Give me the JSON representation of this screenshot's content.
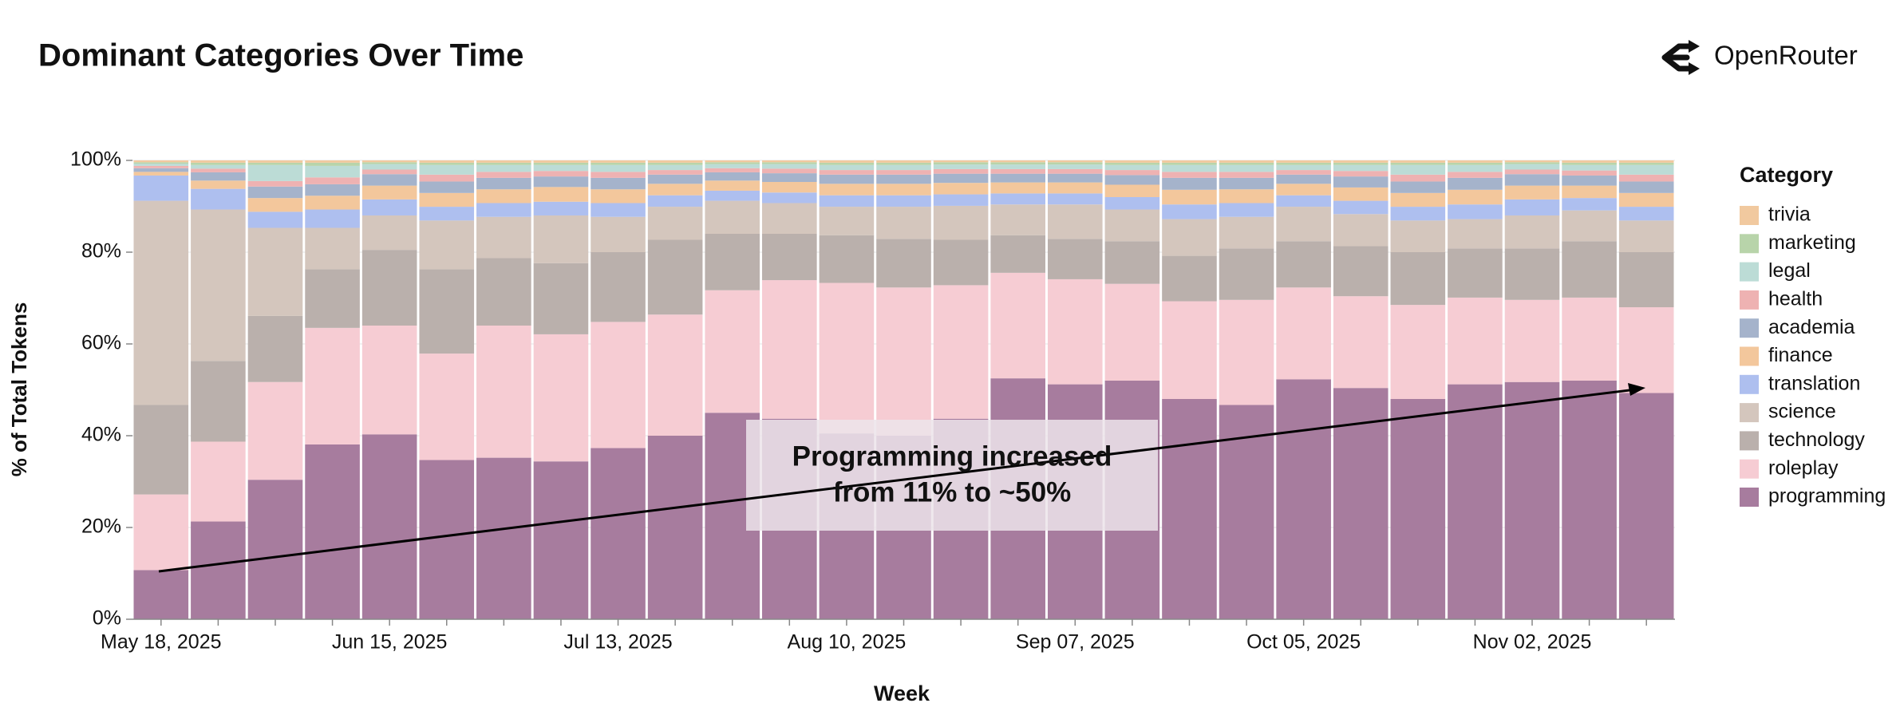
{
  "chart_data": {
    "type": "stacked_bar",
    "title": "Dominant Categories Over Time",
    "brand": "OpenRouter",
    "x_label": "Week",
    "y_label": "% of Total Tokens",
    "legend_title": "Category",
    "annotation": [
      "Programming increased",
      "from 11% to ~50%"
    ],
    "categories": [
      "May 18, 2025",
      null,
      null,
      null,
      "Jun 15, 2025",
      null,
      null,
      null,
      "Jul 13, 2025",
      null,
      null,
      null,
      "Aug 10, 2025",
      null,
      null,
      null,
      "Sep 07, 2025",
      null,
      null,
      null,
      "Oct 05, 2025",
      null,
      null,
      null,
      "Nov 02, 2025",
      null,
      null
    ],
    "ylim": [
      0,
      100
    ],
    "yticks": [
      {
        "value": 0,
        "label": "0%"
      },
      {
        "value": 20,
        "label": "20%"
      },
      {
        "value": 40,
        "label": "40%"
      },
      {
        "value": 60,
        "label": "60%"
      },
      {
        "value": 80,
        "label": "80%"
      },
      {
        "value": 100,
        "label": "100%"
      }
    ],
    "series": [
      {
        "name": "programming",
        "color": "#a77c9e",
        "values": [
          10.7,
          21.3,
          30.4,
          38.1,
          40.3,
          34.7,
          35.2,
          34.4,
          37.3,
          40,
          45,
          43.7,
          40.5,
          40,
          43.7,
          52.5,
          51.2,
          52,
          48,
          46.7,
          52.3,
          50.4,
          48,
          51.2,
          51.7,
          52,
          49.3
        ]
      },
      {
        "name": "roleplay",
        "color": "#f6ccd3",
        "values": [
          16.5,
          17.4,
          21.3,
          25.4,
          23.7,
          23.2,
          28.8,
          27.7,
          27.5,
          26.4,
          26.7,
          30.2,
          32.8,
          32.3,
          29.1,
          23,
          22.9,
          21.1,
          21.3,
          22.9,
          20,
          20,
          20.5,
          18.9,
          17.9,
          18.1,
          18.7
        ]
      },
      {
        "name": "technology",
        "color": "#bab0ac",
        "values": [
          19.5,
          17.6,
          14.4,
          12.8,
          16.5,
          18.4,
          14.7,
          15.5,
          15.2,
          16.3,
          12.3,
          10.1,
          10.4,
          10.6,
          9.9,
          8.2,
          8.8,
          9.3,
          9.9,
          11.2,
          10.1,
          10.9,
          11.5,
          10.7,
          11.2,
          12.3,
          12
        ]
      },
      {
        "name": "science",
        "color": "#d4c6bd",
        "values": [
          44.5,
          33,
          19.2,
          9,
          7.5,
          10.6,
          9,
          10.4,
          7.7,
          7.2,
          7.2,
          6.7,
          6.2,
          7,
          7.4,
          6.7,
          7.5,
          6.9,
          8,
          6.9,
          7.5,
          7,
          6.9,
          6.4,
          7.2,
          6.7,
          6.9
        ]
      },
      {
        "name": "translation",
        "color": "#aebfef",
        "values": [
          5.5,
          4.5,
          3.5,
          4,
          3.5,
          3,
          3,
          3,
          3,
          2.5,
          2.2,
          2.3,
          2.5,
          2.5,
          2.5,
          2.4,
          2.4,
          2.7,
          3.2,
          3,
          2.5,
          2.9,
          3,
          3.2,
          3.5,
          2.7,
          3
        ]
      },
      {
        "name": "finance",
        "color": "#f3c79c",
        "values": [
          0.8,
          1.8,
          3,
          3,
          3,
          3,
          3,
          3.2,
          3,
          2.5,
          2.2,
          2.3,
          2.5,
          2.5,
          2.5,
          2.4,
          2.4,
          2.7,
          3.2,
          3,
          2.5,
          2.9,
          3,
          3.2,
          3,
          2.7,
          3
        ]
      },
      {
        "name": "academia",
        "color": "#a5b3cb",
        "values": [
          0.8,
          1.8,
          2.5,
          2.5,
          2.5,
          2.5,
          2.5,
          2.3,
          2.5,
          2,
          1.8,
          1.9,
          2,
          2,
          2,
          1.9,
          1.9,
          2.1,
          2.6,
          2.5,
          2,
          2.4,
          2.5,
          2.6,
          2.5,
          2.2,
          2.5
        ]
      },
      {
        "name": "health",
        "color": "#eeb2b2",
        "values": [
          0.5,
          0.8,
          1.2,
          1.5,
          1,
          1.5,
          1.3,
          1.2,
          1.3,
          1,
          0.9,
          1,
          1,
          1,
          1,
          1,
          1,
          1.1,
          1.3,
          1.3,
          1,
          1.2,
          1.5,
          1.3,
          1,
          1.1,
          1.5
        ]
      },
      {
        "name": "legal",
        "color": "#bcdcd6",
        "values": [
          0.5,
          0.8,
          3.5,
          2.5,
          1.2,
          2.1,
          1.5,
          1.3,
          1.5,
          1.1,
          0.9,
          1,
          1.1,
          1.1,
          1,
          1,
          1,
          1.1,
          1.5,
          1.5,
          1.1,
          1.3,
          2.1,
          1.5,
          1.2,
          1.2,
          2.1
        ]
      },
      {
        "name": "marketing",
        "color": "#b8d4aa",
        "values": [
          0.3,
          0.5,
          0.5,
          0.7,
          0.4,
          0.5,
          0.5,
          0.5,
          0.5,
          0.5,
          0.4,
          0.4,
          0.5,
          0.5,
          0.5,
          0.5,
          0.5,
          0.5,
          0.5,
          0.5,
          0.5,
          0.5,
          0.5,
          0.5,
          0.4,
          0.5,
          0.5
        ]
      },
      {
        "name": "trivia",
        "color": "#f1c99f",
        "values": [
          0.4,
          0.5,
          0.5,
          0.5,
          0.4,
          0.5,
          0.5,
          0.5,
          0.5,
          0.5,
          0.4,
          0.4,
          0.5,
          0.5,
          0.4,
          0.4,
          0.4,
          0.5,
          0.5,
          0.5,
          0.5,
          0.5,
          0.5,
          0.5,
          0.4,
          0.5,
          0.5
        ]
      }
    ]
  }
}
